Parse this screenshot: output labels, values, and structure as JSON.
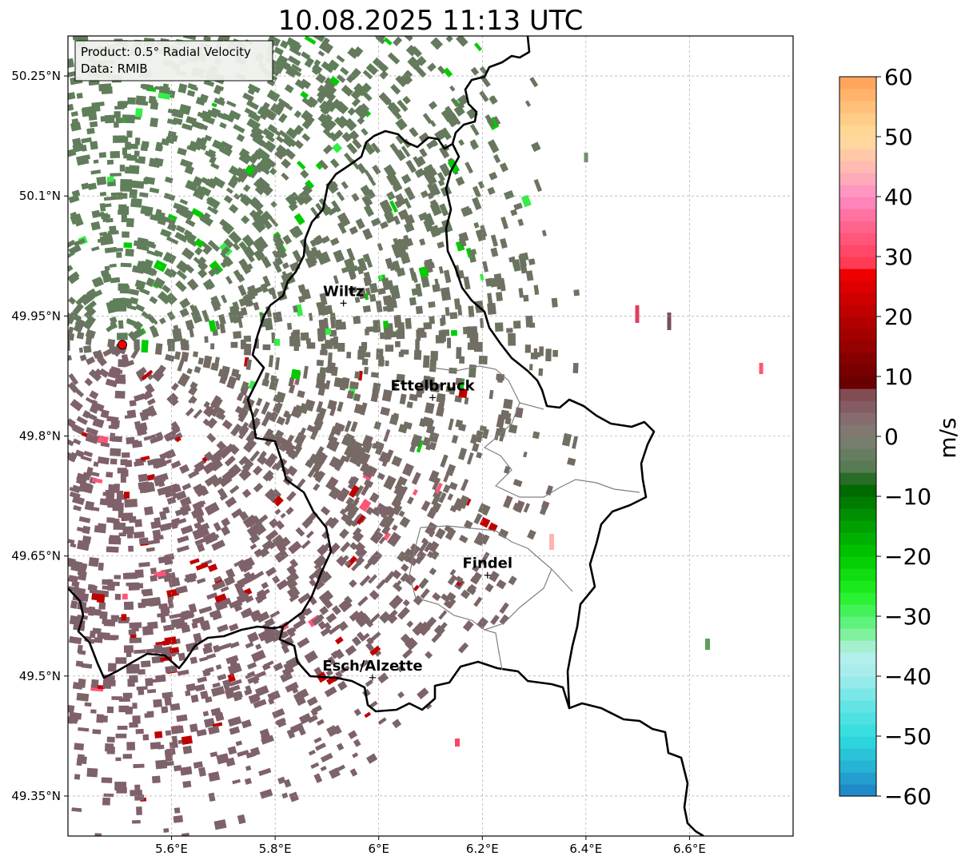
{
  "title": "10.08.2025 11:13 UTC",
  "info_box": {
    "product": "Product: 0.5° Radial Velocity",
    "source": "Data: RMIB"
  },
  "map": {
    "lon_range": [
      5.4,
      6.8
    ],
    "lat_range": [
      49.3,
      50.3
    ],
    "lat_ticks": [
      {
        "value": 50.25,
        "label": "50.25°N"
      },
      {
        "value": 50.1,
        "label": "50.1°N"
      },
      {
        "value": 49.95,
        "label": "49.95°N"
      },
      {
        "value": 49.8,
        "label": "49.8°N"
      },
      {
        "value": 49.65,
        "label": "49.65°N"
      },
      {
        "value": 49.5,
        "label": "49.5°N"
      },
      {
        "value": 49.35,
        "label": "49.35°N"
      }
    ],
    "lon_ticks": [
      {
        "value": 5.6,
        "label": "5.6°E"
      },
      {
        "value": 5.8,
        "label": "5.8°E"
      },
      {
        "value": 6.0,
        "label": "6°E"
      },
      {
        "value": 6.2,
        "label": "6.2°E"
      },
      {
        "value": 6.4,
        "label": "6.4°E"
      },
      {
        "value": 6.6,
        "label": "6.6°E"
      }
    ],
    "grid": true,
    "radar_site": {
      "lon": 5.505,
      "lat": 49.914
    },
    "cities": [
      {
        "name": "Wiltz",
        "lon": 5.932,
        "lat": 49.966
      },
      {
        "name": "Ettelbruck",
        "lon": 6.104,
        "lat": 49.848
      },
      {
        "name": "Findel",
        "lon": 6.21,
        "lat": 49.626
      },
      {
        "name": "Esch/Alzette",
        "lon": 5.988,
        "lat": 49.498
      }
    ],
    "colors": {
      "border": "#000000",
      "canton_border": "#808080",
      "approaching_light": "#5f7f5a",
      "receding_light": "#80606a",
      "strong_green": "#00cc00",
      "strong_red": "#c00000"
    }
  },
  "colorbar": {
    "label": "m/s",
    "vmin": -60,
    "vmax": 60,
    "ticks": [
      "60",
      "50",
      "40",
      "30",
      "20",
      "10",
      "0",
      "−10",
      "−20",
      "−30",
      "−40",
      "−50",
      "−60"
    ],
    "stops": [
      {
        "v": -60,
        "c": "#1f7fc4"
      },
      {
        "v": -55,
        "c": "#27b3d4"
      },
      {
        "v": -50,
        "c": "#2fdcdf"
      },
      {
        "v": -45,
        "c": "#62e4e4"
      },
      {
        "v": -40,
        "c": "#a2ecec"
      },
      {
        "v": -36,
        "c": "#b8f0ec"
      },
      {
        "v": -34,
        "c": "#8ff0b0"
      },
      {
        "v": -30,
        "c": "#4ff26a"
      },
      {
        "v": -26,
        "c": "#1ff020"
      },
      {
        "v": -20,
        "c": "#00c800"
      },
      {
        "v": -14,
        "c": "#009800"
      },
      {
        "v": -8,
        "c": "#005f00"
      },
      {
        "v": -6,
        "c": "#4f7a4d"
      },
      {
        "v": 0,
        "c": "#7f7f73"
      },
      {
        "v": 4,
        "c": "#88646d"
      },
      {
        "v": 8,
        "c": "#80444a"
      },
      {
        "v": 9,
        "c": "#6a0000"
      },
      {
        "v": 20,
        "c": "#b80000"
      },
      {
        "v": 28,
        "c": "#f40000"
      },
      {
        "v": 29,
        "c": "#ff3a55"
      },
      {
        "v": 36,
        "c": "#ff6b96"
      },
      {
        "v": 40,
        "c": "#ff8cc6"
      },
      {
        "v": 44,
        "c": "#ffb4b4"
      },
      {
        "v": 50,
        "c": "#ffdd9a"
      },
      {
        "v": 55,
        "c": "#ffc07a"
      },
      {
        "v": 60,
        "c": "#ff9f55"
      }
    ]
  }
}
